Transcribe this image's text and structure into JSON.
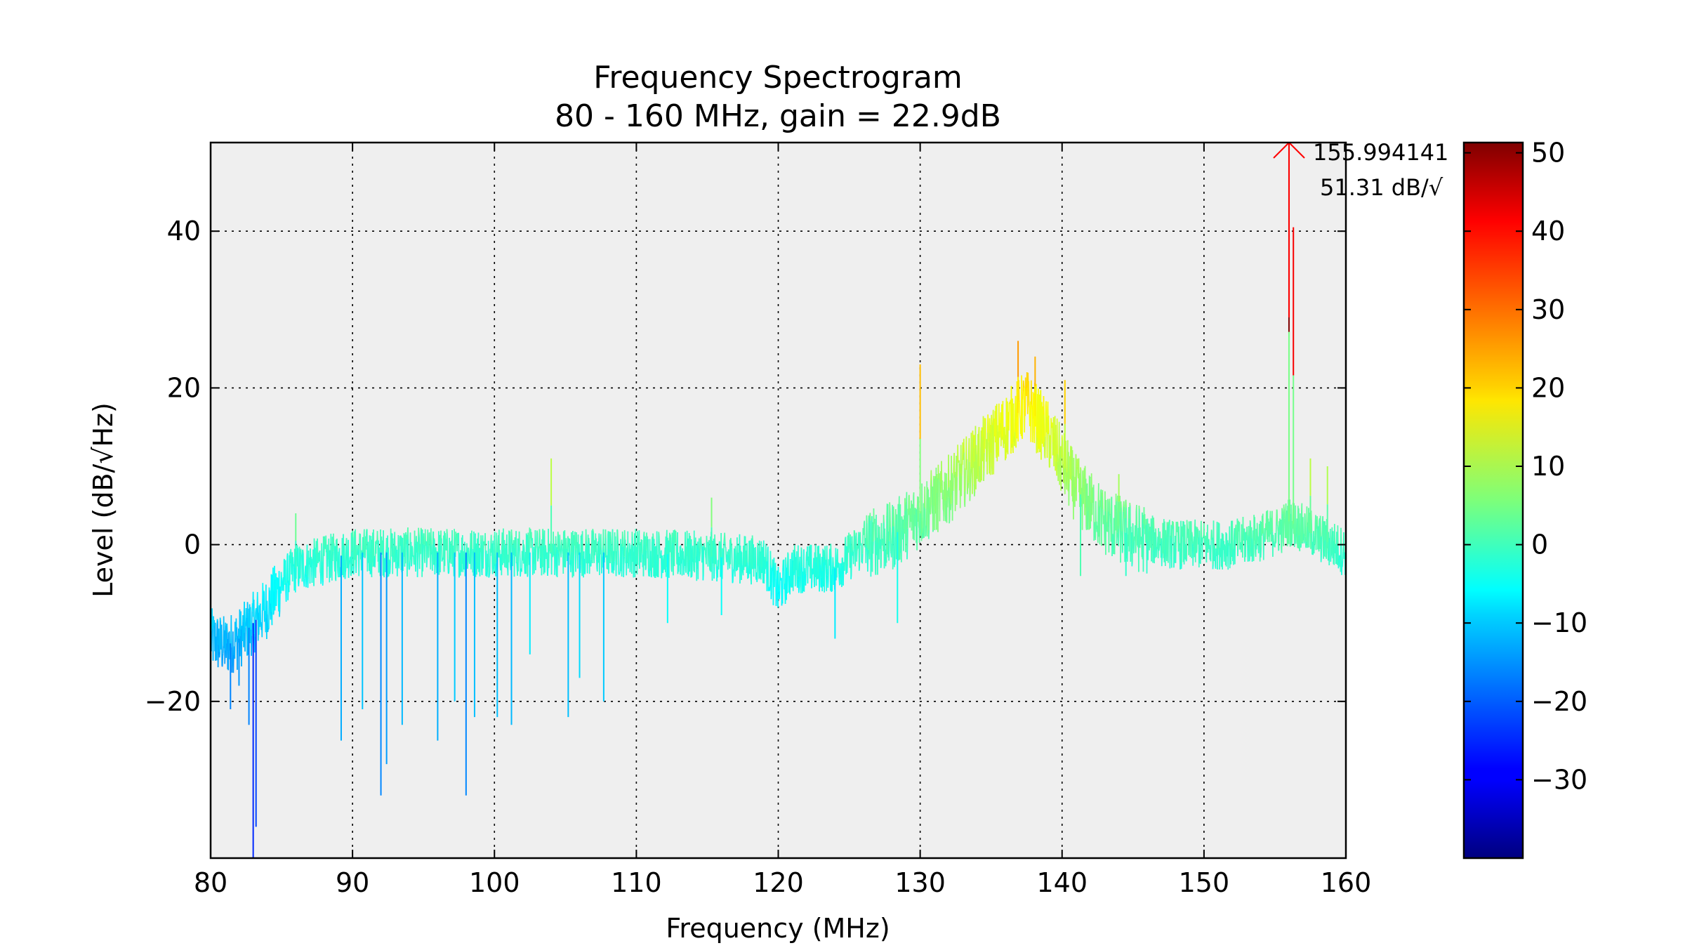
{
  "chart_data": {
    "type": "line",
    "title": "Frequency Spectrogram",
    "subtitle": "80 - 160 MHz, gain = 22.9dB",
    "xlabel": "Frequency (MHz)",
    "ylabel": "Level (dB/√Hz)",
    "xlim": [
      80,
      160
    ],
    "ylim": [
      -40,
      51.31
    ],
    "x_ticks": [
      80,
      90,
      100,
      110,
      120,
      130,
      140,
      150,
      160
    ],
    "y_ticks": [
      -20,
      0,
      20,
      40
    ],
    "y_tick_labels": [
      "−20",
      "0",
      "20",
      "40"
    ],
    "grid": true,
    "colormap": "jet",
    "colorbar": {
      "range": [
        -40,
        51.31
      ],
      "ticks": [
        50,
        40,
        30,
        20,
        10,
        0,
        -10,
        -20,
        -30
      ],
      "tick_labels": [
        "50",
        "40",
        "30",
        "20",
        "10",
        "0",
        "−10",
        "−20",
        "−30"
      ]
    },
    "peak_marker": {
      "x": 155.994141,
      "y": 51.31,
      "label_freq": "155.994141",
      "label_level": "51.31 dB/√",
      "color": "#ff0000"
    },
    "envelope": {
      "x": [
        80,
        81,
        82,
        83,
        84,
        85,
        86,
        88,
        90,
        95,
        100,
        105,
        110,
        115,
        119,
        120,
        121,
        124,
        126,
        128,
        130,
        132,
        134,
        136,
        137.5,
        139,
        141,
        143,
        145,
        148,
        150,
        152,
        154,
        155.5,
        156,
        157,
        158,
        159,
        160
      ],
      "y": [
        -12,
        -13,
        -12,
        -10,
        -8,
        -5,
        -3,
        -2,
        -1,
        -1,
        -1,
        -1,
        -1,
        -1.5,
        -2,
        -6,
        -3,
        -3,
        0,
        1,
        4,
        7,
        11,
        15,
        18,
        14,
        7,
        3,
        1,
        0,
        0,
        0,
        1,
        2,
        3,
        2,
        1,
        0,
        -1
      ]
    },
    "spikes_down": [
      {
        "x": 82.7,
        "y": -23
      },
      {
        "x": 83.0,
        "y": -40
      },
      {
        "x": 83.2,
        "y": -36
      },
      {
        "x": 81.4,
        "y": -21
      },
      {
        "x": 82.0,
        "y": -18
      },
      {
        "x": 89.2,
        "y": -25
      },
      {
        "x": 90.7,
        "y": -21
      },
      {
        "x": 92.0,
        "y": -32
      },
      {
        "x": 92.4,
        "y": -28
      },
      {
        "x": 93.5,
        "y": -23
      },
      {
        "x": 96.0,
        "y": -25
      },
      {
        "x": 97.2,
        "y": -20
      },
      {
        "x": 98.0,
        "y": -32
      },
      {
        "x": 98.6,
        "y": -22
      },
      {
        "x": 100.2,
        "y": -22
      },
      {
        "x": 101.2,
        "y": -23
      },
      {
        "x": 102.5,
        "y": -14
      },
      {
        "x": 105.2,
        "y": -22
      },
      {
        "x": 106.0,
        "y": -17
      },
      {
        "x": 107.7,
        "y": -20
      },
      {
        "x": 112.2,
        "y": -10
      },
      {
        "x": 116.0,
        "y": -9
      },
      {
        "x": 124.0,
        "y": -12
      },
      {
        "x": 128.4,
        "y": -10
      },
      {
        "x": 141.3,
        "y": -4
      },
      {
        "x": 144.5,
        "y": -4
      }
    ],
    "spikes_up": [
      {
        "x": 86.0,
        "y": 4
      },
      {
        "x": 104.0,
        "y": 11
      },
      {
        "x": 115.3,
        "y": 6
      },
      {
        "x": 130.0,
        "y": 23
      },
      {
        "x": 133.8,
        "y": 14
      },
      {
        "x": 136.9,
        "y": 26
      },
      {
        "x": 138.1,
        "y": 24
      },
      {
        "x": 140.2,
        "y": 21
      },
      {
        "x": 144.0,
        "y": 9
      },
      {
        "x": 155.99,
        "y": 51.31
      },
      {
        "x": 156.3,
        "y": 40.5
      },
      {
        "x": 157.5,
        "y": 11
      },
      {
        "x": 158.7,
        "y": 10
      }
    ]
  }
}
